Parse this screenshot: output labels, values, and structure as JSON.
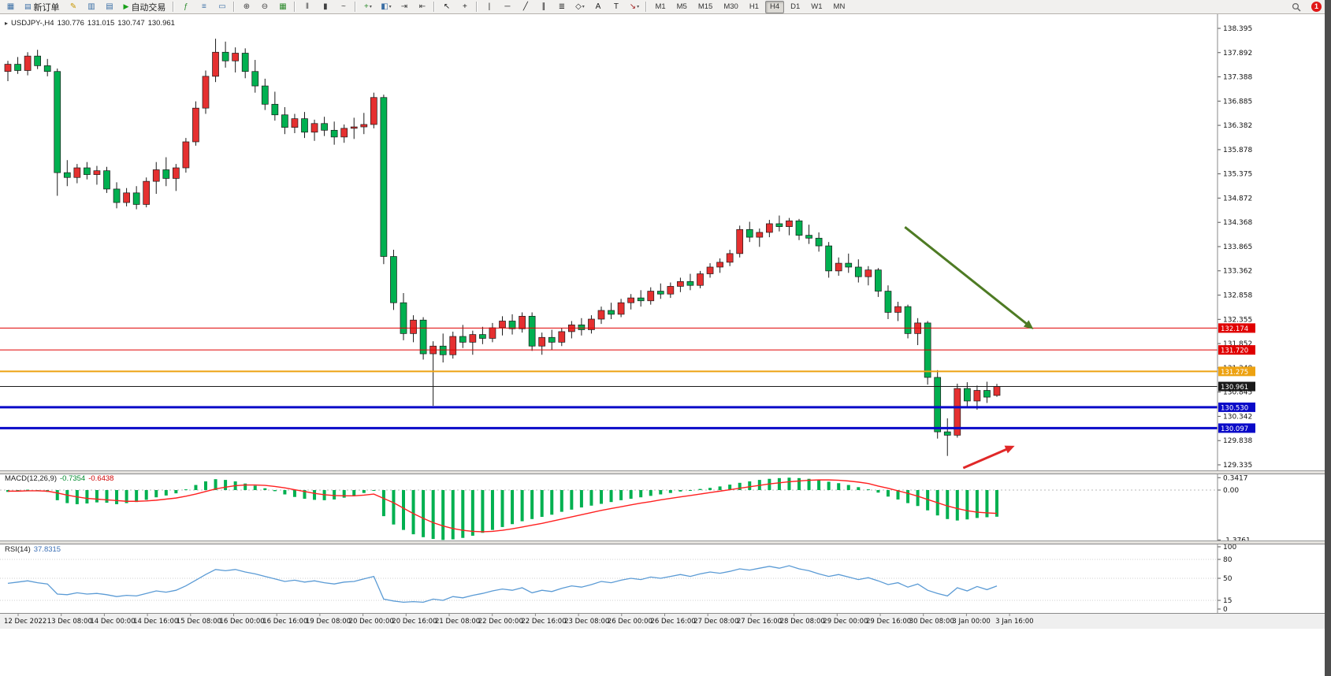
{
  "toolbar": {
    "notification_badge": "1",
    "active_timeframe": "H4",
    "timeframes": [
      "M1",
      "M5",
      "M15",
      "M30",
      "H1",
      "H4",
      "D1",
      "W1",
      "MN"
    ],
    "items": [
      {
        "type": "icon",
        "name": "chart-window-icon",
        "glyph": "▦",
        "color": "#3a6ea5"
      },
      {
        "type": "button",
        "name": "new-order-button",
        "glyph": "▤",
        "color": "#3a6ea5",
        "label": "新订单"
      },
      {
        "type": "icon",
        "name": "metaeditor-icon",
        "glyph": "✎",
        "color": "#c89600"
      },
      {
        "type": "icon",
        "name": "market-watch-icon",
        "glyph": "▥",
        "color": "#3a6ea5"
      },
      {
        "type": "icon",
        "name": "data-window-icon",
        "glyph": "▤",
        "color": "#3a6ea5"
      },
      {
        "type": "button",
        "name": "autotrading-button",
        "glyph": "▶",
        "color": "#18a018",
        "label": "自动交易"
      },
      {
        "type": "sep"
      },
      {
        "type": "icon",
        "name": "indicators-icon",
        "glyph": "ƒ",
        "color": "#2e8b2e"
      },
      {
        "type": "icon",
        "name": "navigator-icon",
        "glyph": "≡",
        "color": "#3a6ea5"
      },
      {
        "type": "icon",
        "name": "terminal-icon",
        "glyph": "▭",
        "color": "#3a6ea5"
      },
      {
        "type": "sep"
      },
      {
        "type": "icon",
        "name": "zoom-in-icon",
        "glyph": "⊕",
        "color": "#404040"
      },
      {
        "type": "icon",
        "name": "zoom-out-icon",
        "glyph": "⊖",
        "color": "#404040"
      },
      {
        "type": "icon",
        "name": "tile-windows-icon",
        "glyph": "▦",
        "color": "#2e8b2e"
      },
      {
        "type": "sep"
      },
      {
        "type": "icon",
        "name": "bar-chart-icon",
        "glyph": "‖",
        "color": "#404040"
      },
      {
        "type": "icon",
        "name": "candlestick-chart-icon",
        "glyph": "▮",
        "color": "#404040"
      },
      {
        "type": "icon",
        "name": "line-chart-icon",
        "glyph": "~",
        "color": "#404040"
      },
      {
        "type": "sep"
      },
      {
        "type": "icon",
        "name": "new-chart-icon",
        "glyph": "+",
        "color": "#2e8b2e",
        "dropdown": true
      },
      {
        "type": "icon",
        "name": "profiles-icon",
        "glyph": "◧",
        "color": "#3a6ea5",
        "dropdown": true
      },
      {
        "type": "icon",
        "name": "auto-scroll-icon",
        "glyph": "⇥",
        "color": "#404040"
      },
      {
        "type": "icon",
        "name": "chart-shift-icon",
        "glyph": "⇤",
        "color": "#404040"
      },
      {
        "type": "sep"
      },
      {
        "type": "icon",
        "name": "cursor-icon",
        "glyph": "↖",
        "color": "#202020"
      },
      {
        "type": "icon",
        "name": "crosshair-icon",
        "glyph": "+",
        "color": "#202020"
      },
      {
        "type": "sep"
      },
      {
        "type": "icon",
        "name": "vertical-line-icon",
        "glyph": "|",
        "color": "#202020"
      },
      {
        "type": "icon",
        "name": "horizontal-line-icon",
        "glyph": "─",
        "color": "#202020"
      },
      {
        "type": "icon",
        "name": "trendline-icon",
        "glyph": "╱",
        "color": "#202020"
      },
      {
        "type": "icon",
        "name": "equidistant-channel-icon",
        "glyph": "∥",
        "color": "#202020"
      },
      {
        "type": "icon",
        "name": "fibonacci-icon",
        "glyph": "≣",
        "color": "#202020"
      },
      {
        "type": "icon",
        "name": "shapes-icon",
        "glyph": "◇",
        "color": "#202020",
        "dropdown": true
      },
      {
        "type": "icon",
        "name": "text-icon",
        "glyph": "A",
        "color": "#202020"
      },
      {
        "type": "icon",
        "name": "text-label-icon",
        "glyph": "T",
        "color": "#202020"
      },
      {
        "type": "icon",
        "name": "arrows-icon",
        "glyph": "↘",
        "color": "#a02020",
        "dropdown": true
      },
      {
        "type": "sep"
      },
      {
        "type": "tf-group"
      }
    ]
  },
  "chart": {
    "title": {
      "collapse_glyph": "▸",
      "symbol_tf": "USDJPY-,H4",
      "open": "130.776",
      "high": "131.015",
      "low": "130.747",
      "close": "130.961"
    },
    "colors": {
      "up": "#e53030",
      "down": "#00b050",
      "wick": "#1a1a1a",
      "rsi_line": "#5b9bd5",
      "macd_hist": "#00b050",
      "macd_signal": "#ff2020"
    },
    "price_axis_labels": [
      "138.395",
      "137.892",
      "137.388",
      "136.885",
      "136.382",
      "135.878",
      "135.375",
      "134.872",
      "134.368",
      "133.865",
      "133.362",
      "132.858",
      "132.355",
      "131.852",
      "131.348",
      "130.845",
      "130.342",
      "129.838",
      "129.335"
    ],
    "time_axis_labels": [
      "12 Dec 2022",
      "13 Dec 08:00",
      "14 Dec 00:00",
      "14 Dec 16:00",
      "15 Dec 08:00",
      "16 Dec 00:00",
      "16 Dec 16:00",
      "19 Dec 08:00",
      "20 Dec 00:00",
      "20 Dec 16:00",
      "21 Dec 08:00",
      "22 Dec 00:00",
      "22 Dec 16:00",
      "23 Dec 08:00",
      "26 Dec 00:00",
      "26 Dec 16:00",
      "27 Dec 08:00",
      "27 Dec 16:00",
      "28 Dec 08:00",
      "29 Dec 00:00",
      "29 Dec 16:00",
      "30 Dec 08:00",
      "3 Jan 00:00",
      "3 Jan 16:00"
    ],
    "lines": [
      {
        "name": "resistance-line-1",
        "price": 132.174,
        "label": "132.174",
        "color": "#e00000",
        "width": 1
      },
      {
        "name": "resistance-line-2",
        "price": 131.72,
        "label": "131.720",
        "color": "#e00000",
        "width": 1
      },
      {
        "name": "pivot-line",
        "price": 131.275,
        "label": "131.275",
        "color": "#eda211",
        "width": 2
      },
      {
        "name": "current-price-line",
        "price": 130.961,
        "label": "130.961",
        "color": "#1a1a1a",
        "width": 1,
        "current": true
      },
      {
        "name": "support-line-1",
        "price": 130.53,
        "label": "130.530",
        "color": "#0a0ac8",
        "width": 3
      },
      {
        "name": "support-line-2",
        "price": 130.097,
        "label": "130.097",
        "color": "#0a0ac8",
        "width": 3
      }
    ],
    "arrows": [
      {
        "name": "trend-down-arrow",
        "color": "#4e7b24",
        "b1": 90.7,
        "p1": 134.27,
        "b2": 103.7,
        "p2": 132.15,
        "width": 3
      },
      {
        "name": "reversal-up-arrow",
        "color": "#e02828",
        "b1": 96.6,
        "p1": 129.27,
        "b2": 101.8,
        "p2": 129.73,
        "width": 3
      }
    ]
  },
  "macd": {
    "name_label": "MACD(12,26,9)",
    "value_main": "-0.7354",
    "value_signal": "-0.6438",
    "axis_labels": [
      "0.3417",
      "0.00",
      "-1.3761"
    ]
  },
  "rsi": {
    "name_label": "RSI(14)",
    "value": "37.8315",
    "axis_labels": [
      "100",
      "80",
      "50",
      "15",
      "0"
    ],
    "levels": [
      80,
      50,
      15
    ]
  },
  "chart_data": {
    "type": "candlestick",
    "symbol": "USDJPY-",
    "timeframe": "H4",
    "ohlc_order": [
      "open",
      "high",
      "low",
      "close"
    ],
    "candles": [
      [
        137.5,
        137.72,
        137.3,
        137.65
      ],
      [
        137.65,
        137.8,
        137.45,
        137.52
      ],
      [
        137.52,
        137.9,
        137.42,
        137.82
      ],
      [
        137.82,
        137.95,
        137.55,
        137.62
      ],
      [
        137.62,
        137.76,
        137.4,
        137.5
      ],
      [
        137.5,
        137.56,
        134.92,
        135.4
      ],
      [
        135.4,
        135.66,
        135.12,
        135.3
      ],
      [
        135.3,
        135.58,
        135.18,
        135.5
      ],
      [
        135.5,
        135.62,
        135.26,
        135.36
      ],
      [
        135.36,
        135.54,
        135.15,
        135.44
      ],
      [
        135.44,
        135.52,
        134.98,
        135.06
      ],
      [
        135.06,
        135.2,
        134.66,
        134.78
      ],
      [
        134.78,
        135.08,
        134.7,
        134.98
      ],
      [
        134.98,
        135.12,
        134.64,
        134.74
      ],
      [
        134.74,
        135.3,
        134.68,
        135.22
      ],
      [
        135.22,
        135.62,
        134.96,
        135.46
      ],
      [
        135.46,
        135.72,
        135.12,
        135.28
      ],
      [
        135.28,
        135.58,
        135.02,
        135.5
      ],
      [
        135.5,
        136.12,
        135.4,
        136.04
      ],
      [
        136.04,
        136.88,
        135.96,
        136.74
      ],
      [
        136.74,
        137.52,
        136.62,
        137.4
      ],
      [
        137.4,
        138.18,
        137.28,
        137.9
      ],
      [
        137.9,
        138.12,
        137.58,
        137.72
      ],
      [
        137.72,
        138.0,
        137.48,
        137.88
      ],
      [
        137.88,
        137.98,
        137.36,
        137.5
      ],
      [
        137.5,
        137.74,
        137.06,
        137.2
      ],
      [
        137.2,
        137.35,
        136.7,
        136.82
      ],
      [
        136.82,
        137.08,
        136.48,
        136.6
      ],
      [
        136.6,
        136.76,
        136.2,
        136.34
      ],
      [
        136.34,
        136.62,
        136.22,
        136.52
      ],
      [
        136.52,
        136.66,
        136.12,
        136.24
      ],
      [
        136.24,
        136.5,
        136.06,
        136.42
      ],
      [
        136.42,
        136.56,
        136.16,
        136.28
      ],
      [
        136.28,
        136.46,
        135.98,
        136.14
      ],
      [
        136.14,
        136.4,
        136.02,
        136.32
      ],
      [
        136.32,
        136.54,
        136.1,
        136.35
      ],
      [
        136.35,
        136.64,
        136.2,
        136.4
      ],
      [
        136.4,
        137.06,
        136.32,
        136.96
      ],
      [
        136.96,
        137.02,
        133.5,
        133.66
      ],
      [
        133.66,
        133.8,
        132.55,
        132.7
      ],
      [
        132.7,
        132.9,
        131.92,
        132.06
      ],
      [
        132.06,
        132.44,
        131.88,
        132.34
      ],
      [
        132.34,
        132.4,
        131.52,
        131.64
      ],
      [
        131.64,
        131.9,
        130.56,
        131.8
      ],
      [
        131.8,
        132.06,
        131.46,
        131.62
      ],
      [
        131.62,
        132.1,
        131.54,
        132.0
      ],
      [
        132.0,
        132.24,
        131.76,
        131.88
      ],
      [
        131.88,
        132.12,
        131.62,
        132.04
      ],
      [
        132.04,
        132.2,
        131.84,
        131.96
      ],
      [
        131.96,
        132.28,
        131.88,
        132.18
      ],
      [
        132.18,
        132.42,
        132.02,
        132.32
      ],
      [
        132.32,
        132.46,
        132.04,
        132.16
      ],
      [
        132.16,
        132.5,
        132.08,
        132.42
      ],
      [
        132.42,
        132.5,
        131.7,
        131.8
      ],
      [
        131.8,
        132.08,
        131.62,
        131.98
      ],
      [
        131.98,
        132.14,
        131.72,
        131.88
      ],
      [
        131.88,
        132.18,
        131.8,
        132.1
      ],
      [
        132.1,
        132.32,
        131.96,
        132.24
      ],
      [
        132.24,
        132.38,
        132.02,
        132.14
      ],
      [
        132.14,
        132.44,
        132.06,
        132.36
      ],
      [
        132.36,
        132.62,
        132.26,
        132.54
      ],
      [
        132.54,
        132.7,
        132.36,
        132.46
      ],
      [
        132.46,
        132.78,
        132.4,
        132.7
      ],
      [
        132.7,
        132.88,
        132.56,
        132.8
      ],
      [
        132.8,
        132.96,
        132.62,
        132.74
      ],
      [
        132.74,
        133.02,
        132.66,
        132.94
      ],
      [
        132.94,
        133.1,
        132.78,
        132.88
      ],
      [
        132.88,
        133.12,
        132.8,
        133.04
      ],
      [
        133.04,
        133.22,
        132.92,
        133.14
      ],
      [
        133.14,
        133.3,
        132.96,
        133.06
      ],
      [
        133.06,
        133.36,
        133.0,
        133.3
      ],
      [
        133.3,
        133.52,
        133.22,
        133.44
      ],
      [
        133.44,
        133.62,
        133.32,
        133.54
      ],
      [
        133.54,
        133.8,
        133.46,
        133.72
      ],
      [
        133.72,
        134.3,
        133.64,
        134.22
      ],
      [
        134.22,
        134.38,
        133.96,
        134.06
      ],
      [
        134.06,
        134.24,
        133.86,
        134.16
      ],
      [
        134.16,
        134.42,
        134.06,
        134.34
      ],
      [
        134.34,
        134.51,
        134.18,
        134.28
      ],
      [
        134.28,
        134.46,
        134.1,
        134.4
      ],
      [
        134.4,
        134.44,
        134.0,
        134.1
      ],
      [
        134.1,
        134.32,
        133.92,
        134.04
      ],
      [
        134.04,
        134.16,
        133.76,
        133.88
      ],
      [
        133.88,
        133.96,
        133.22,
        133.36
      ],
      [
        133.36,
        133.64,
        133.26,
        133.52
      ],
      [
        133.52,
        133.72,
        133.32,
        133.44
      ],
      [
        133.44,
        133.6,
        133.12,
        133.24
      ],
      [
        133.24,
        133.46,
        133.06,
        133.38
      ],
      [
        133.38,
        133.42,
        132.82,
        132.94
      ],
      [
        132.94,
        133.06,
        132.36,
        132.5
      ],
      [
        132.5,
        132.72,
        132.32,
        132.62
      ],
      [
        132.62,
        132.66,
        131.96,
        132.06
      ],
      [
        132.06,
        132.38,
        131.82,
        132.28
      ],
      [
        132.28,
        132.32,
        131.0,
        131.15
      ],
      [
        131.15,
        131.3,
        129.88,
        130.02
      ],
      [
        130.02,
        130.3,
        129.52,
        129.95
      ],
      [
        129.95,
        131.02,
        129.9,
        130.92
      ],
      [
        130.92,
        131.05,
        130.52,
        130.66
      ],
      [
        130.66,
        130.98,
        130.48,
        130.88
      ],
      [
        130.88,
        131.06,
        130.62,
        130.74
      ],
      [
        130.776,
        131.015,
        130.747,
        130.961
      ]
    ],
    "macd_main": [
      -0.05,
      -0.02,
      0.01,
      -0.02,
      -0.05,
      -0.28,
      -0.36,
      -0.39,
      -0.37,
      -0.34,
      -0.35,
      -0.39,
      -0.36,
      -0.33,
      -0.27,
      -0.2,
      -0.15,
      -0.09,
      0.02,
      0.14,
      0.24,
      0.3,
      0.28,
      0.24,
      0.18,
      0.12,
      0.05,
      -0.03,
      -0.12,
      -0.19,
      -0.24,
      -0.27,
      -0.28,
      -0.26,
      -0.21,
      -0.15,
      -0.08,
      0.0,
      -0.72,
      -0.95,
      -1.1,
      -1.22,
      -1.3,
      -1.35,
      -1.3761,
      -1.36,
      -1.32,
      -1.26,
      -1.18,
      -1.1,
      -1.02,
      -0.94,
      -0.86,
      -0.8,
      -0.74,
      -0.68,
      -0.6,
      -0.54,
      -0.48,
      -0.43,
      -0.38,
      -0.33,
      -0.28,
      -0.24,
      -0.2,
      -0.16,
      -0.12,
      -0.08,
      -0.04,
      -0.01,
      0.03,
      0.06,
      0.1,
      0.15,
      0.2,
      0.24,
      0.28,
      0.31,
      0.33,
      0.3417,
      0.33,
      0.31,
      0.28,
      0.23,
      0.19,
      0.14,
      0.08,
      0.02,
      -0.07,
      -0.18,
      -0.26,
      -0.36,
      -0.44,
      -0.56,
      -0.7,
      -0.8,
      -0.84,
      -0.81,
      -0.77,
      -0.75,
      -0.7354
    ],
    "macd_signal": [
      -0.03,
      -0.03,
      -0.02,
      -0.02,
      -0.03,
      -0.08,
      -0.14,
      -0.19,
      -0.23,
      -0.25,
      -0.27,
      -0.29,
      -0.31,
      -0.31,
      -0.3,
      -0.28,
      -0.25,
      -0.22,
      -0.17,
      -0.11,
      -0.04,
      0.03,
      0.08,
      0.12,
      0.14,
      0.14,
      0.13,
      0.1,
      0.06,
      0.01,
      -0.04,
      -0.09,
      -0.13,
      -0.15,
      -0.16,
      -0.16,
      -0.14,
      -0.11,
      -0.23,
      -0.35,
      -0.5,
      -0.65,
      -0.78,
      -0.9,
      -0.99,
      -1.06,
      -1.11,
      -1.14,
      -1.15,
      -1.14,
      -1.11,
      -1.07,
      -1.02,
      -0.97,
      -0.92,
      -0.86,
      -0.8,
      -0.74,
      -0.68,
      -0.62,
      -0.56,
      -0.51,
      -0.46,
      -0.41,
      -0.36,
      -0.32,
      -0.27,
      -0.23,
      -0.19,
      -0.15,
      -0.11,
      -0.07,
      -0.03,
      0.01,
      0.05,
      0.09,
      0.13,
      0.17,
      0.2,
      0.23,
      0.25,
      0.27,
      0.28,
      0.28,
      0.27,
      0.25,
      0.22,
      0.18,
      0.11,
      0.05,
      -0.02,
      -0.09,
      -0.17,
      -0.26,
      -0.35,
      -0.44,
      -0.51,
      -0.57,
      -0.61,
      -0.63,
      -0.6438
    ],
    "rsi": [
      42,
      44,
      46,
      43,
      41,
      25,
      24,
      27,
      25,
      26,
      24,
      21,
      23,
      22,
      26,
      30,
      28,
      31,
      38,
      47,
      56,
      64,
      62,
      64,
      60,
      57,
      53,
      49,
      45,
      47,
      44,
      46,
      43,
      41,
      44,
      45,
      49,
      53,
      17,
      14,
      12,
      13,
      12,
      17,
      15,
      21,
      19,
      23,
      26,
      30,
      33,
      31,
      35,
      27,
      31,
      29,
      34,
      38,
      36,
      40,
      45,
      43,
      47,
      50,
      48,
      52,
      50,
      53,
      56,
      53,
      57,
      60,
      58,
      61,
      65,
      63,
      66,
      69,
      66,
      70,
      65,
      62,
      57,
      53,
      56,
      52,
      48,
      51,
      46,
      40,
      43,
      36,
      41,
      31,
      26,
      22,
      35,
      30,
      37,
      32,
      37.8
    ]
  }
}
